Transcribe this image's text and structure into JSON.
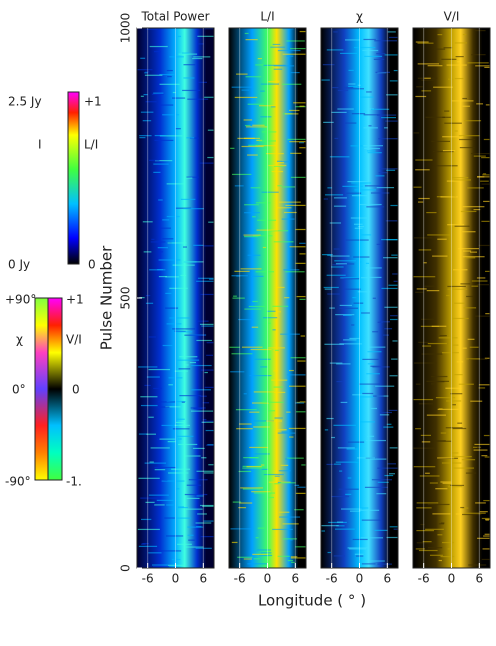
{
  "chart_data": [
    {
      "type": "heatmap",
      "title": "Total Power",
      "xlim": [
        -8.3,
        8.3
      ],
      "xticks": [
        -6,
        0,
        6
      ],
      "ylim": [
        0,
        1000
      ],
      "yticks": [
        0,
        500,
        1000
      ],
      "colors": [
        "#000030",
        "#0030d0",
        "#00b0ff",
        "#40ffe0"
      ]
    },
    {
      "type": "heatmap",
      "title": "L/I",
      "xlim": [
        -8.3,
        8.3
      ],
      "xticks": [
        -6,
        0,
        6
      ],
      "colors": [
        "#000000",
        "#00a0ff",
        "#40ff60",
        "#ffe000"
      ]
    },
    {
      "type": "heatmap",
      "title": "χ",
      "xlim": [
        -8.3,
        8.3
      ],
      "xticks": [
        -6,
        0,
        6
      ],
      "colors": [
        "#000000",
        "#1040c0",
        "#00c0ff",
        "#40e0ff"
      ]
    },
    {
      "type": "heatmap",
      "title": "V/I",
      "xlim": [
        -8.3,
        8.3
      ],
      "xticks": [
        -6,
        0,
        6
      ],
      "colors": [
        "#000000",
        "#403000",
        "#c0a000",
        "#ffd020"
      ]
    }
  ],
  "axis_labels": {
    "x": "Longitude ( ° )",
    "y": "Pulse Number"
  },
  "colorbars": [
    {
      "labels": [
        "2.5 Jy",
        "I",
        "0 Jy",
        "+1",
        "L/I",
        "0"
      ]
    },
    {
      "labels": [
        "+90°",
        "χ",
        "0°",
        "-90°",
        "+1",
        "V/I",
        "0",
        "-1."
      ]
    }
  ]
}
